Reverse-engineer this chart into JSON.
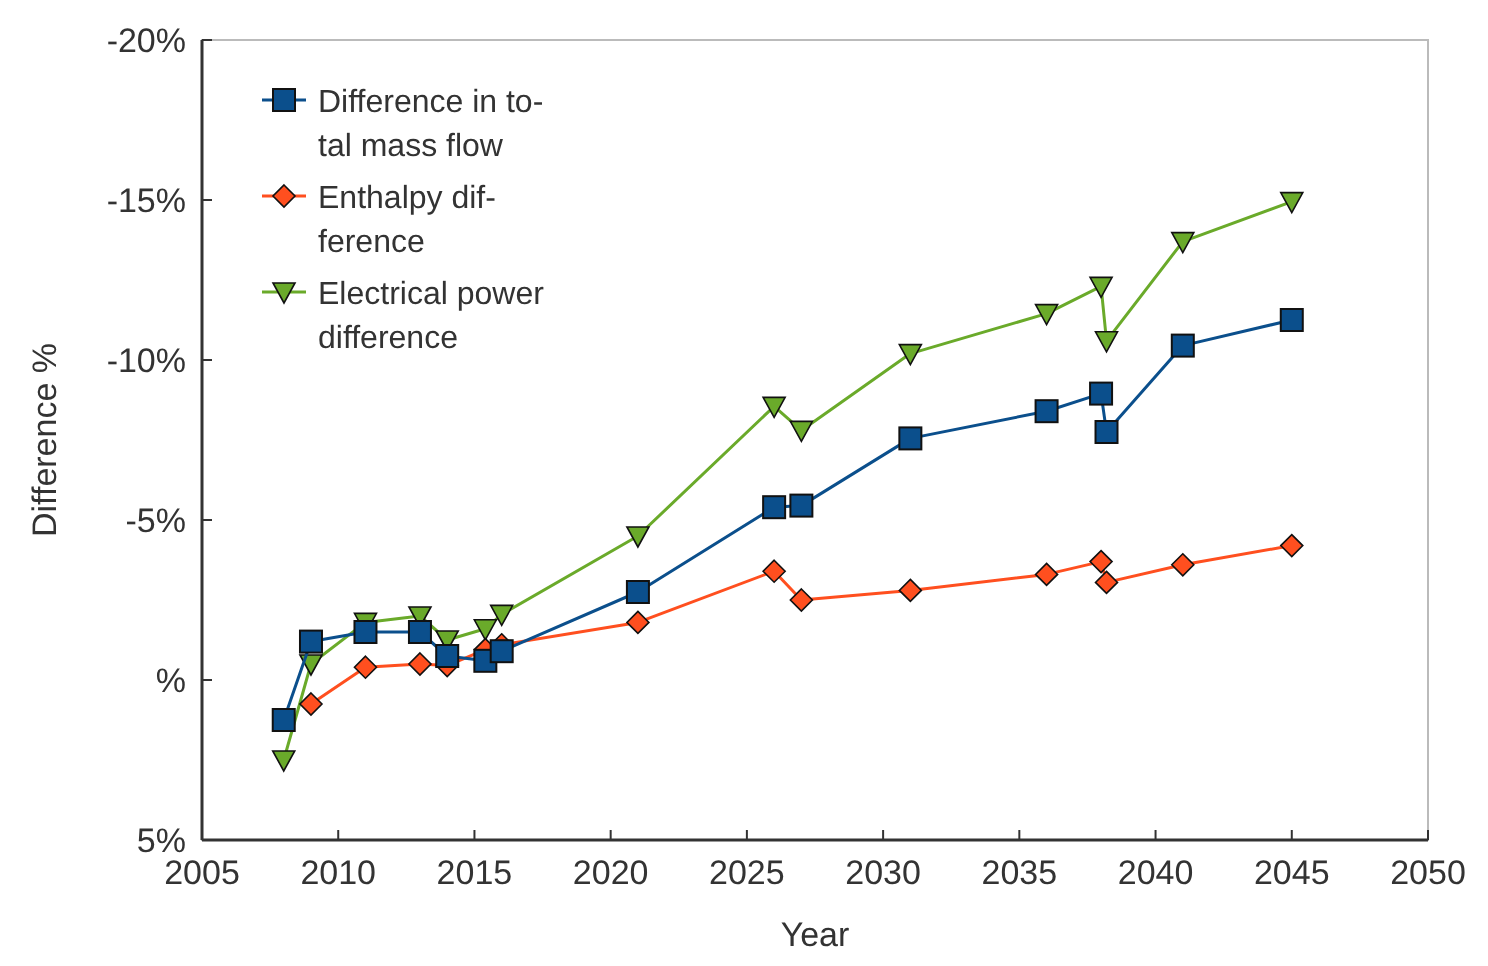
{
  "chart_data": {
    "type": "line",
    "xlabel": "Year",
    "ylabel": "Difference %",
    "xlim": [
      2005,
      2050
    ],
    "xticks": [
      2005,
      2010,
      2015,
      2020,
      2025,
      2030,
      2035,
      2040,
      2045,
      2050
    ],
    "ylim": [
      5,
      -20
    ],
    "yticks": [
      {
        "value": -20,
        "label": "-20%"
      },
      {
        "value": -15,
        "label": "-15%"
      },
      {
        "value": -10,
        "label": "-10%"
      },
      {
        "value": -5,
        "label": "-5%"
      },
      {
        "value": 0,
        "label": "%"
      },
      {
        "value": 5,
        "label": "5%"
      }
    ],
    "grid": false,
    "legend": "top left",
    "line_style": "solid",
    "x": [
      2008,
      2009,
      2011,
      2013,
      2014,
      2015.4,
      2016,
      2021,
      2026,
      2027,
      2031,
      2036,
      2038,
      2038.2,
      2041,
      2045
    ],
    "series": [
      {
        "name": "Difference in to-\ntal mass flow",
        "color": "#0b4f8c",
        "marker": "square",
        "values": [
          1.25,
          -1.2,
          -1.5,
          -1.5,
          -0.75,
          -0.6,
          -0.9,
          -2.75,
          -5.4,
          -5.45,
          -7.55,
          -8.4,
          -8.95,
          -7.75,
          -10.45,
          -11.25
        ]
      },
      {
        "name": "Enthalpy dif-\nference",
        "color": "#ff4f1f",
        "marker": "diamond",
        "values": [
          null,
          0.75,
          -0.4,
          -0.5,
          -0.45,
          -0.95,
          -1.1,
          -1.8,
          -3.4,
          -2.5,
          -2.8,
          -3.3,
          -3.7,
          -3.05,
          -3.6,
          -4.2
        ]
      },
      {
        "name": "Electrical power\ndifference",
        "color": "#6aaa2a",
        "marker": "triangle",
        "values": [
          2.5,
          -0.5,
          -1.8,
          -2.0,
          -1.25,
          -1.6,
          -2.05,
          -4.5,
          -8.55,
          -7.8,
          -10.2,
          -11.45,
          -12.3,
          -10.6,
          -13.7,
          -14.95
        ]
      }
    ]
  }
}
